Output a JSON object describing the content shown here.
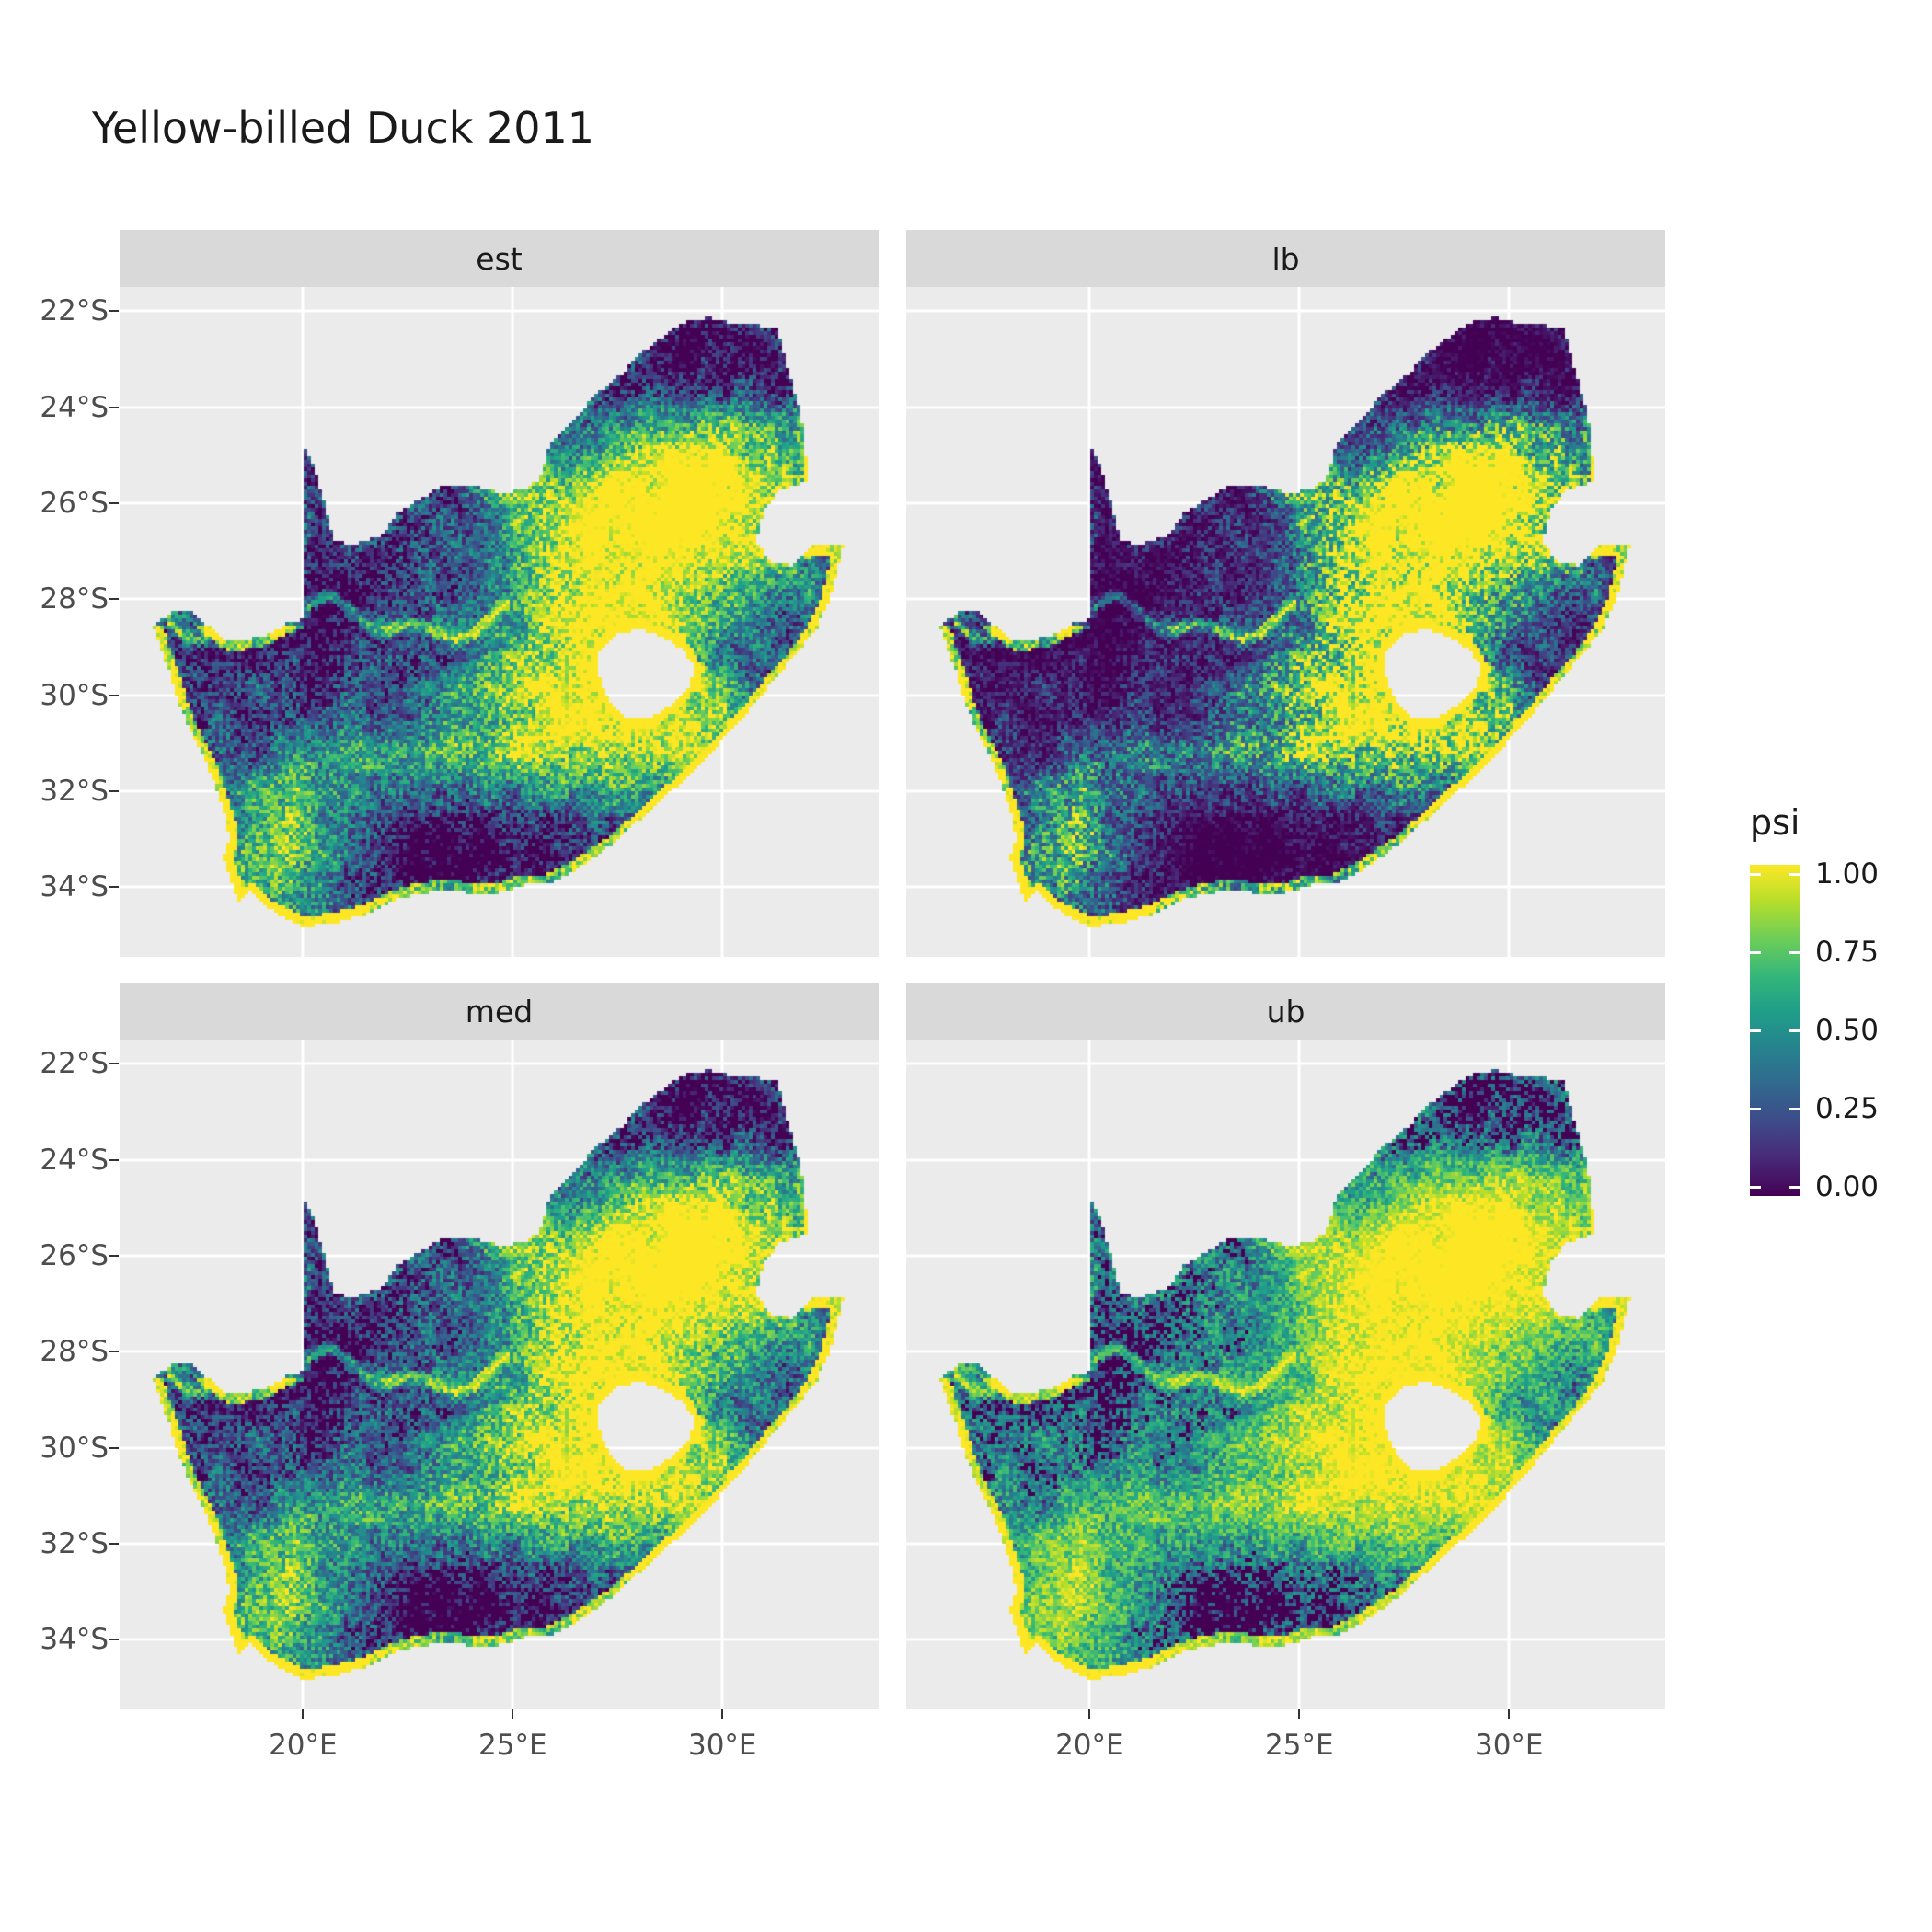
{
  "title": "Yellow-billed Duck 2011",
  "facets": [
    {
      "label": "est"
    },
    {
      "label": "lb"
    },
    {
      "label": "med"
    },
    {
      "label": "ub"
    }
  ],
  "axes": {
    "x_ticks": [
      "20°E",
      "25°E",
      "30°E"
    ],
    "y_ticks": [
      "22°S",
      "24°S",
      "26°S",
      "28°S",
      "30°S",
      "32°S",
      "34°S"
    ]
  },
  "legend": {
    "title": "psi",
    "tick_labels": [
      "1.00",
      "0.75",
      "0.50",
      "0.25",
      "0.00"
    ],
    "tick_values": [
      1.0,
      0.75,
      0.5,
      0.25,
      0.0
    ]
  },
  "colors": {
    "background": "#ffffff",
    "panel_bg": "#ebebeb",
    "strip_bg": "#d9d9d9",
    "grid": "#ffffff",
    "axis_text": "#4d4d4d",
    "title_text": "#1a1a1a",
    "viridis": [
      "#440154",
      "#482878",
      "#3e4a89",
      "#31688e",
      "#26828e",
      "#1f9e89",
      "#35b779",
      "#6ece58",
      "#b5de2b",
      "#fde725"
    ]
  },
  "chart_data": {
    "type": "heatmap",
    "title": "Yellow-billed Duck 2011",
    "variable": "psi",
    "value_range": [
      0.0,
      1.0
    ],
    "facet_labels": [
      "est",
      "lb",
      "med",
      "ub"
    ],
    "x_tick_values": [
      20,
      25,
      30
    ],
    "y_tick_values": [
      -22,
      -24,
      -26,
      -28,
      -30,
      -32,
      -34
    ],
    "x_range_deg_east": [
      16.45,
      32.9
    ],
    "y_range_deg_lat": [
      -34.82,
      -22.13
    ],
    "legend_position": "right",
    "facet_gamma": {
      "est": 1.0,
      "lb": 1.65,
      "med": 0.9,
      "ub": 0.55
    },
    "region_outline": [
      [
        16.45,
        -28.58
      ],
      [
        16.8,
        -28.3
      ],
      [
        17.25,
        -28.22
      ],
      [
        17.65,
        -28.5
      ],
      [
        18.2,
        -28.87
      ],
      [
        18.75,
        -28.82
      ],
      [
        19.25,
        -28.72
      ],
      [
        19.6,
        -28.5
      ],
      [
        19.99,
        -28.42
      ],
      [
        19.99,
        -27.5
      ],
      [
        19.99,
        -26.5
      ],
      [
        19.99,
        -25.5
      ],
      [
        19.99,
        -24.76
      ],
      [
        20.25,
        -25.2
      ],
      [
        20.45,
        -25.8
      ],
      [
        20.62,
        -26.4
      ],
      [
        20.78,
        -26.82
      ],
      [
        21.3,
        -26.84
      ],
      [
        21.9,
        -26.67
      ],
      [
        22.25,
        -26.2
      ],
      [
        22.75,
        -25.95
      ],
      [
        23.35,
        -25.6
      ],
      [
        24.0,
        -25.62
      ],
      [
        24.75,
        -25.78
      ],
      [
        25.35,
        -25.72
      ],
      [
        25.65,
        -25.47
      ],
      [
        25.9,
        -24.73
      ],
      [
        26.45,
        -24.3
      ],
      [
        26.95,
        -23.75
      ],
      [
        27.55,
        -23.35
      ],
      [
        28.1,
        -22.85
      ],
      [
        28.7,
        -22.45
      ],
      [
        29.15,
        -22.2
      ],
      [
        29.7,
        -22.13
      ],
      [
        30.25,
        -22.25
      ],
      [
        30.85,
        -22.3
      ],
      [
        31.3,
        -22.35
      ],
      [
        31.5,
        -23.0
      ],
      [
        31.7,
        -23.6
      ],
      [
        31.88,
        -24.2
      ],
      [
        31.98,
        -24.9
      ],
      [
        32.02,
        -25.55
      ],
      [
        31.4,
        -25.72
      ],
      [
        31.0,
        -26.1
      ],
      [
        30.8,
        -26.8
      ],
      [
        31.12,
        -27.2
      ],
      [
        31.65,
        -27.3
      ],
      [
        31.97,
        -27.0
      ],
      [
        32.15,
        -26.86
      ],
      [
        32.9,
        -26.86
      ],
      [
        32.6,
        -27.9
      ],
      [
        32.25,
        -28.6
      ],
      [
        31.8,
        -29.1
      ],
      [
        31.25,
        -29.65
      ],
      [
        30.7,
        -30.25
      ],
      [
        30.1,
        -30.85
      ],
      [
        29.5,
        -31.4
      ],
      [
        28.85,
        -31.95
      ],
      [
        28.2,
        -32.45
      ],
      [
        27.6,
        -32.95
      ],
      [
        27.0,
        -33.35
      ],
      [
        26.4,
        -33.7
      ],
      [
        25.8,
        -33.95
      ],
      [
        25.3,
        -33.95
      ],
      [
        24.8,
        -34.1
      ],
      [
        24.1,
        -34.15
      ],
      [
        23.4,
        -34.05
      ],
      [
        22.7,
        -34.15
      ],
      [
        22.1,
        -34.3
      ],
      [
        21.4,
        -34.6
      ],
      [
        20.65,
        -34.78
      ],
      [
        20.0,
        -34.82
      ],
      [
        19.45,
        -34.6
      ],
      [
        19.05,
        -34.35
      ],
      [
        18.75,
        -34.1
      ],
      [
        18.45,
        -34.35
      ],
      [
        18.35,
        -34.0
      ],
      [
        18.1,
        -33.4
      ],
      [
        18.25,
        -33.0
      ],
      [
        18.15,
        -32.55
      ],
      [
        17.95,
        -32.0
      ],
      [
        17.7,
        -31.4
      ],
      [
        17.35,
        -30.8
      ],
      [
        17.05,
        -30.2
      ],
      [
        16.85,
        -29.6
      ],
      [
        16.6,
        -29.0
      ]
    ],
    "hole_outline": [
      [
        27.05,
        -29.1
      ],
      [
        27.45,
        -28.75
      ],
      [
        28.0,
        -28.62
      ],
      [
        28.55,
        -28.78
      ],
      [
        29.05,
        -29.05
      ],
      [
        29.35,
        -29.45
      ],
      [
        29.2,
        -29.85
      ],
      [
        28.75,
        -30.2
      ],
      [
        28.25,
        -30.5
      ],
      [
        27.7,
        -30.45
      ],
      [
        27.3,
        -30.1
      ],
      [
        27.05,
        -29.6
      ]
    ],
    "pattern": {
      "base": 0.18,
      "north_fade_start": 25.2,
      "north_fade_rate": 0.05,
      "blobs": [
        [
          27.8,
          26.6,
          2.6,
          1.5,
          0.95
        ],
        [
          29.9,
          25.2,
          1.5,
          1.1,
          0.5
        ],
        [
          26.6,
          29.4,
          2.3,
          1.4,
          0.4
        ],
        [
          28.8,
          30.2,
          1.9,
          1.1,
          0.5
        ],
        [
          24.8,
          31.2,
          3.4,
          1.1,
          0.5
        ],
        [
          19.4,
          33.7,
          1.5,
          1.0,
          0.55
        ],
        [
          19.9,
          32.0,
          1.1,
          1.0,
          0.28
        ],
        [
          22.3,
          26.3,
          2.6,
          2.0,
          -0.22
        ],
        [
          29.8,
          23.0,
          2.2,
          1.1,
          -0.22
        ],
        [
          21.3,
          30.3,
          2.2,
          1.4,
          -0.15
        ],
        [
          23.6,
          33.1,
          2.6,
          0.85,
          -0.32
        ],
        [
          30.4,
          29.4,
          1.0,
          0.7,
          -0.2
        ]
      ],
      "river": {
        "lon_start": 16.8,
        "lon_end": 24.9,
        "lat_base": 28.45,
        "amp1": 0.3,
        "amp2": 0.18,
        "strength": 0.55
      },
      "coast_edge_boost": 0.75,
      "inland_edge_boost": 0.12
    }
  }
}
